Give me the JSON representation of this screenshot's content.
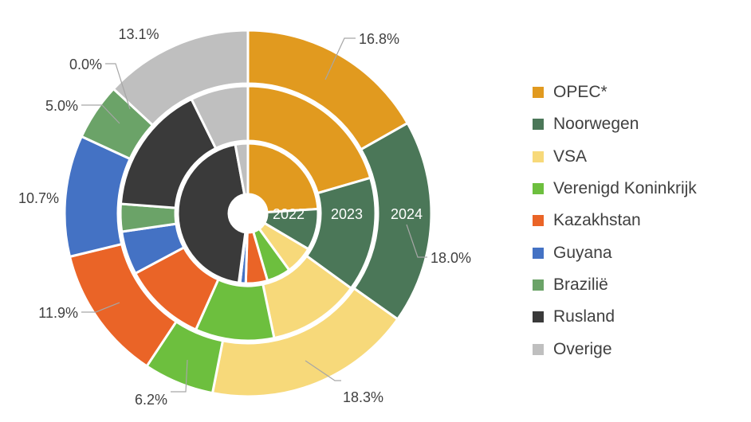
{
  "chart_data": {
    "type": "donut",
    "rings": [
      "2022",
      "2023",
      "2024"
    ],
    "categories": [
      "OPEC*",
      "Noorwegen",
      "VSA",
      "Verenigd Koninkrijk",
      "Kazakhstan",
      "Guyana",
      "Brazilië",
      "Rusland",
      "Overige"
    ],
    "colors": [
      "#E19A1F",
      "#4B7758",
      "#F7D97A",
      "#6DBF3E",
      "#EA6427",
      "#4472C4",
      "#6BA368",
      "#3A3A3A",
      "#BFBFBF"
    ],
    "series": [
      {
        "values": [
          24.0,
          9.5,
          6.5,
          5.5,
          5.0,
          1.3,
          0.3,
          45.0,
          2.9
        ]
      },
      {
        "values": [
          20.5,
          14.5,
          11.7,
          10.0,
          10.5,
          5.5,
          3.5,
          16.5,
          7.3
        ]
      },
      {
        "values": [
          16.8,
          18.0,
          18.3,
          6.2,
          11.9,
          10.7,
          5.0,
          0.0,
          13.1
        ]
      }
    ],
    "data_labels": [
      "16.8%",
      "18.0%",
      "18.3%",
      "6.2%",
      "11.9%",
      "10.7%",
      "5.0%",
      "0.0%",
      "13.1%"
    ],
    "legend_position": "right"
  }
}
